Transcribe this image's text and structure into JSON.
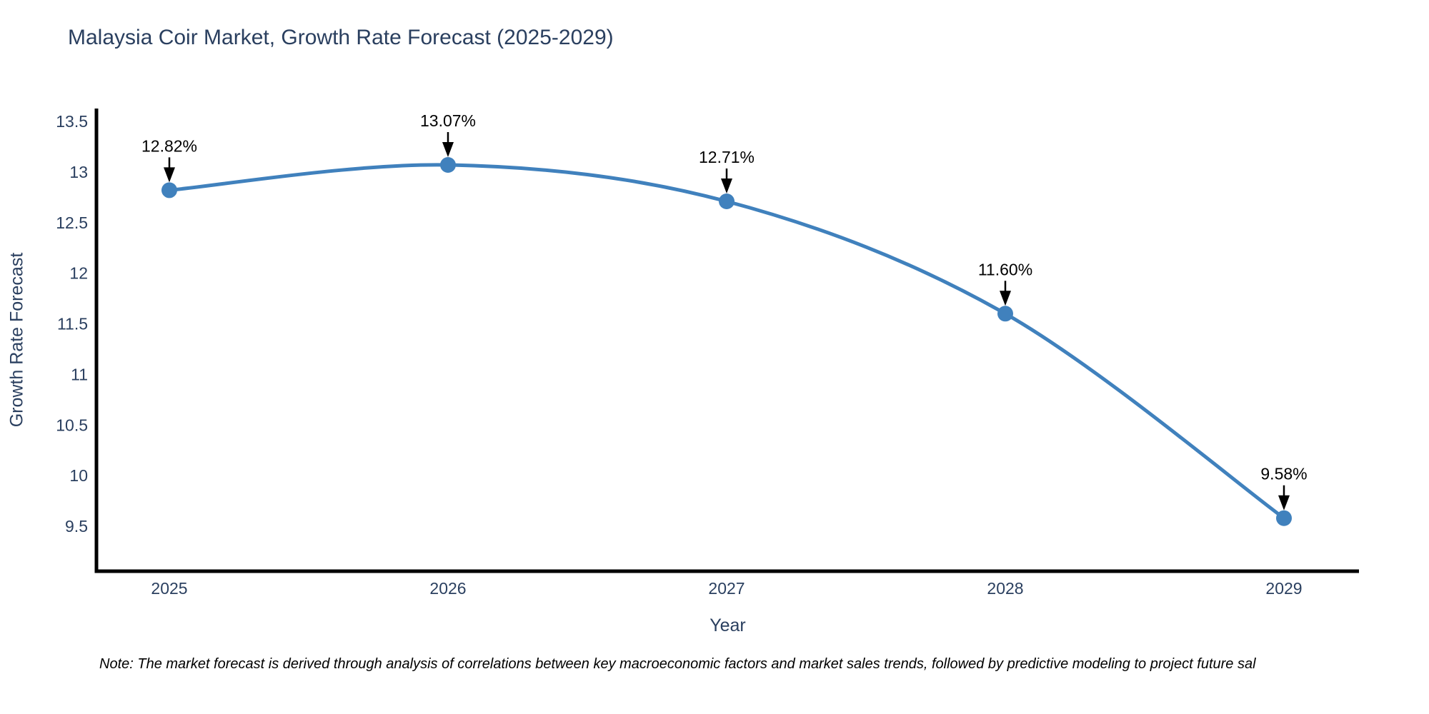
{
  "title": "Malaysia Coir Market, Growth Rate Forecast (2025-2029)",
  "note": "Note: The market forecast is derived through analysis of correlations between key macroeconomic factors and market sales trends, followed by predictive modeling to project future sal",
  "chart_data": {
    "type": "line",
    "title": "Malaysia Coir Market, Growth Rate Forecast (2025-2029)",
    "xlabel": "Year",
    "ylabel": "Growth Rate Forecast",
    "x": [
      2025,
      2026,
      2027,
      2028,
      2029
    ],
    "values": [
      12.82,
      13.07,
      12.71,
      11.6,
      9.58
    ],
    "point_labels": [
      "12.82%",
      "13.07%",
      "12.71%",
      "11.60%",
      "9.58%"
    ],
    "xticks": [
      "2025",
      "2026",
      "2027",
      "2028",
      "2029"
    ],
    "yticks": [
      9.5,
      10,
      10.5,
      11,
      11.5,
      12,
      12.5,
      13,
      13.5
    ],
    "ylim": [
      9.05,
      13.63
    ],
    "grid": false,
    "legend": "none",
    "line_color": "#4081bd",
    "marker_color": "#4081bd",
    "axis_color": "#000000",
    "tick_label_color": "#2a3f5f",
    "annotation_color": "#000000"
  }
}
